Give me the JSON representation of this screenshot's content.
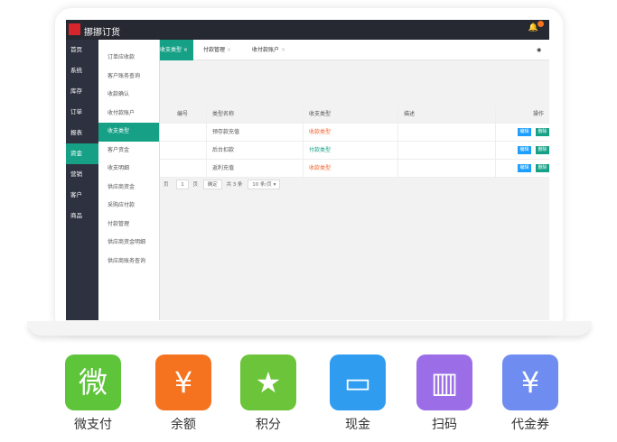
{
  "app": {
    "title": "挪挪订货",
    "badge": ""
  },
  "sidebar": [
    "首页",
    "系统",
    "库存",
    "订单",
    "报表",
    "资金",
    "营销",
    "客户",
    "商品"
  ],
  "submenu": [
    "订单应收款",
    "客户账务查询",
    "收款确认",
    "收付款账户",
    "收支类型",
    "客户资金",
    "收支明细",
    "供应商资金",
    "采购应付款",
    "付款管理",
    "供应商资金明细",
    "供应商账务查询"
  ],
  "tabs": [
    "收支类型",
    "付款管理",
    "收付款账户"
  ],
  "table": {
    "headers": [
      "编号",
      "类型名称",
      "收支类型",
      "描述",
      "操作"
    ],
    "rows": [
      {
        "name": "预存款充值",
        "type": "收款类型",
        "color": "#f5622d"
      },
      {
        "name": "后台扣款",
        "type": "付款类型",
        "color": "#16a086"
      },
      {
        "name": "返利充值",
        "type": "收款类型",
        "color": "#f5622d"
      }
    ],
    "edit": "编辑",
    "delete": "删除"
  },
  "pager": {
    "page": "1",
    "page_unit": "页",
    "go": "确定",
    "total": "共 3 条",
    "per_page": "10 条/页"
  },
  "payments": [
    {
      "label": "微支付",
      "glyph": "微",
      "color": "#5ec53a"
    },
    {
      "label": "余额",
      "glyph": "¥",
      "color": "#f5731f"
    },
    {
      "label": "积分",
      "glyph": "★",
      "color": "#6cc43a"
    },
    {
      "label": "现金",
      "glyph": "▭",
      "color": "#2f9cf0"
    },
    {
      "label": "扫码",
      "glyph": "▥",
      "color": "#9b6ee8"
    },
    {
      "label": "代金券",
      "glyph": "¥",
      "color": "#6f8cf0"
    }
  ]
}
